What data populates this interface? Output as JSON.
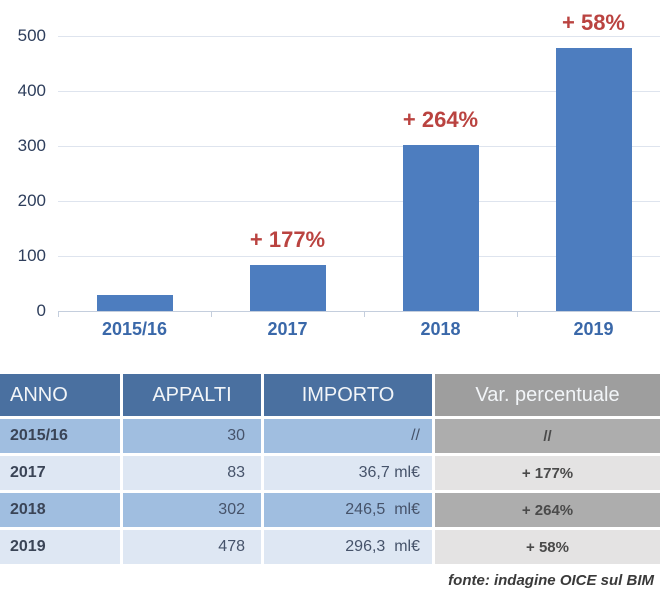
{
  "chart_data": {
    "type": "bar",
    "title": "",
    "categories": [
      "2015/16",
      "2017",
      "2018",
      "2019"
    ],
    "values": [
      30,
      83,
      302,
      478
    ],
    "bar_labels": [
      "",
      "+ 177%",
      "+ 264%",
      "+ 58%"
    ],
    "y_ticks": [
      "500",
      "400",
      "300",
      "200",
      "100",
      "0"
    ],
    "ylim": [
      0,
      500
    ],
    "xlabel": "",
    "ylabel": "",
    "grid": true,
    "legend": "none"
  },
  "table": {
    "headers": [
      "ANNO",
      "APPALTI",
      "IMPORTO",
      "Var. percentuale"
    ],
    "rows": [
      {
        "anno": "2015/16",
        "appalti": "30",
        "importo": "//",
        "var_pct": "//"
      },
      {
        "anno": "2017",
        "appalti": "83",
        "importo": "36,7 ml€",
        "var_pct": "+ 177%"
      },
      {
        "anno": "2018",
        "appalti": "302",
        "importo": "246,5  ml€",
        "var_pct": "+ 264%"
      },
      {
        "anno": "2019",
        "appalti": "478",
        "importo": "296,3  ml€",
        "var_pct": "+ 58%"
      }
    ]
  },
  "footer": {
    "source_note": "fonte: indagine OICE sul BIM"
  },
  "colors": {
    "bar": "#4D7DBF",
    "pct_label": "#BA4340",
    "y_axis_label": "#2E3E5C",
    "category_label": "#3A68A9",
    "header_blue": "#4A70A0",
    "header_gray": "#9E9E9E",
    "row_blue_dark": "#A0BEE0",
    "row_blue_light": "#DEE7F3",
    "var_gray_dark": "#ADADAD",
    "var_gray_light": "#E4E3E3"
  }
}
